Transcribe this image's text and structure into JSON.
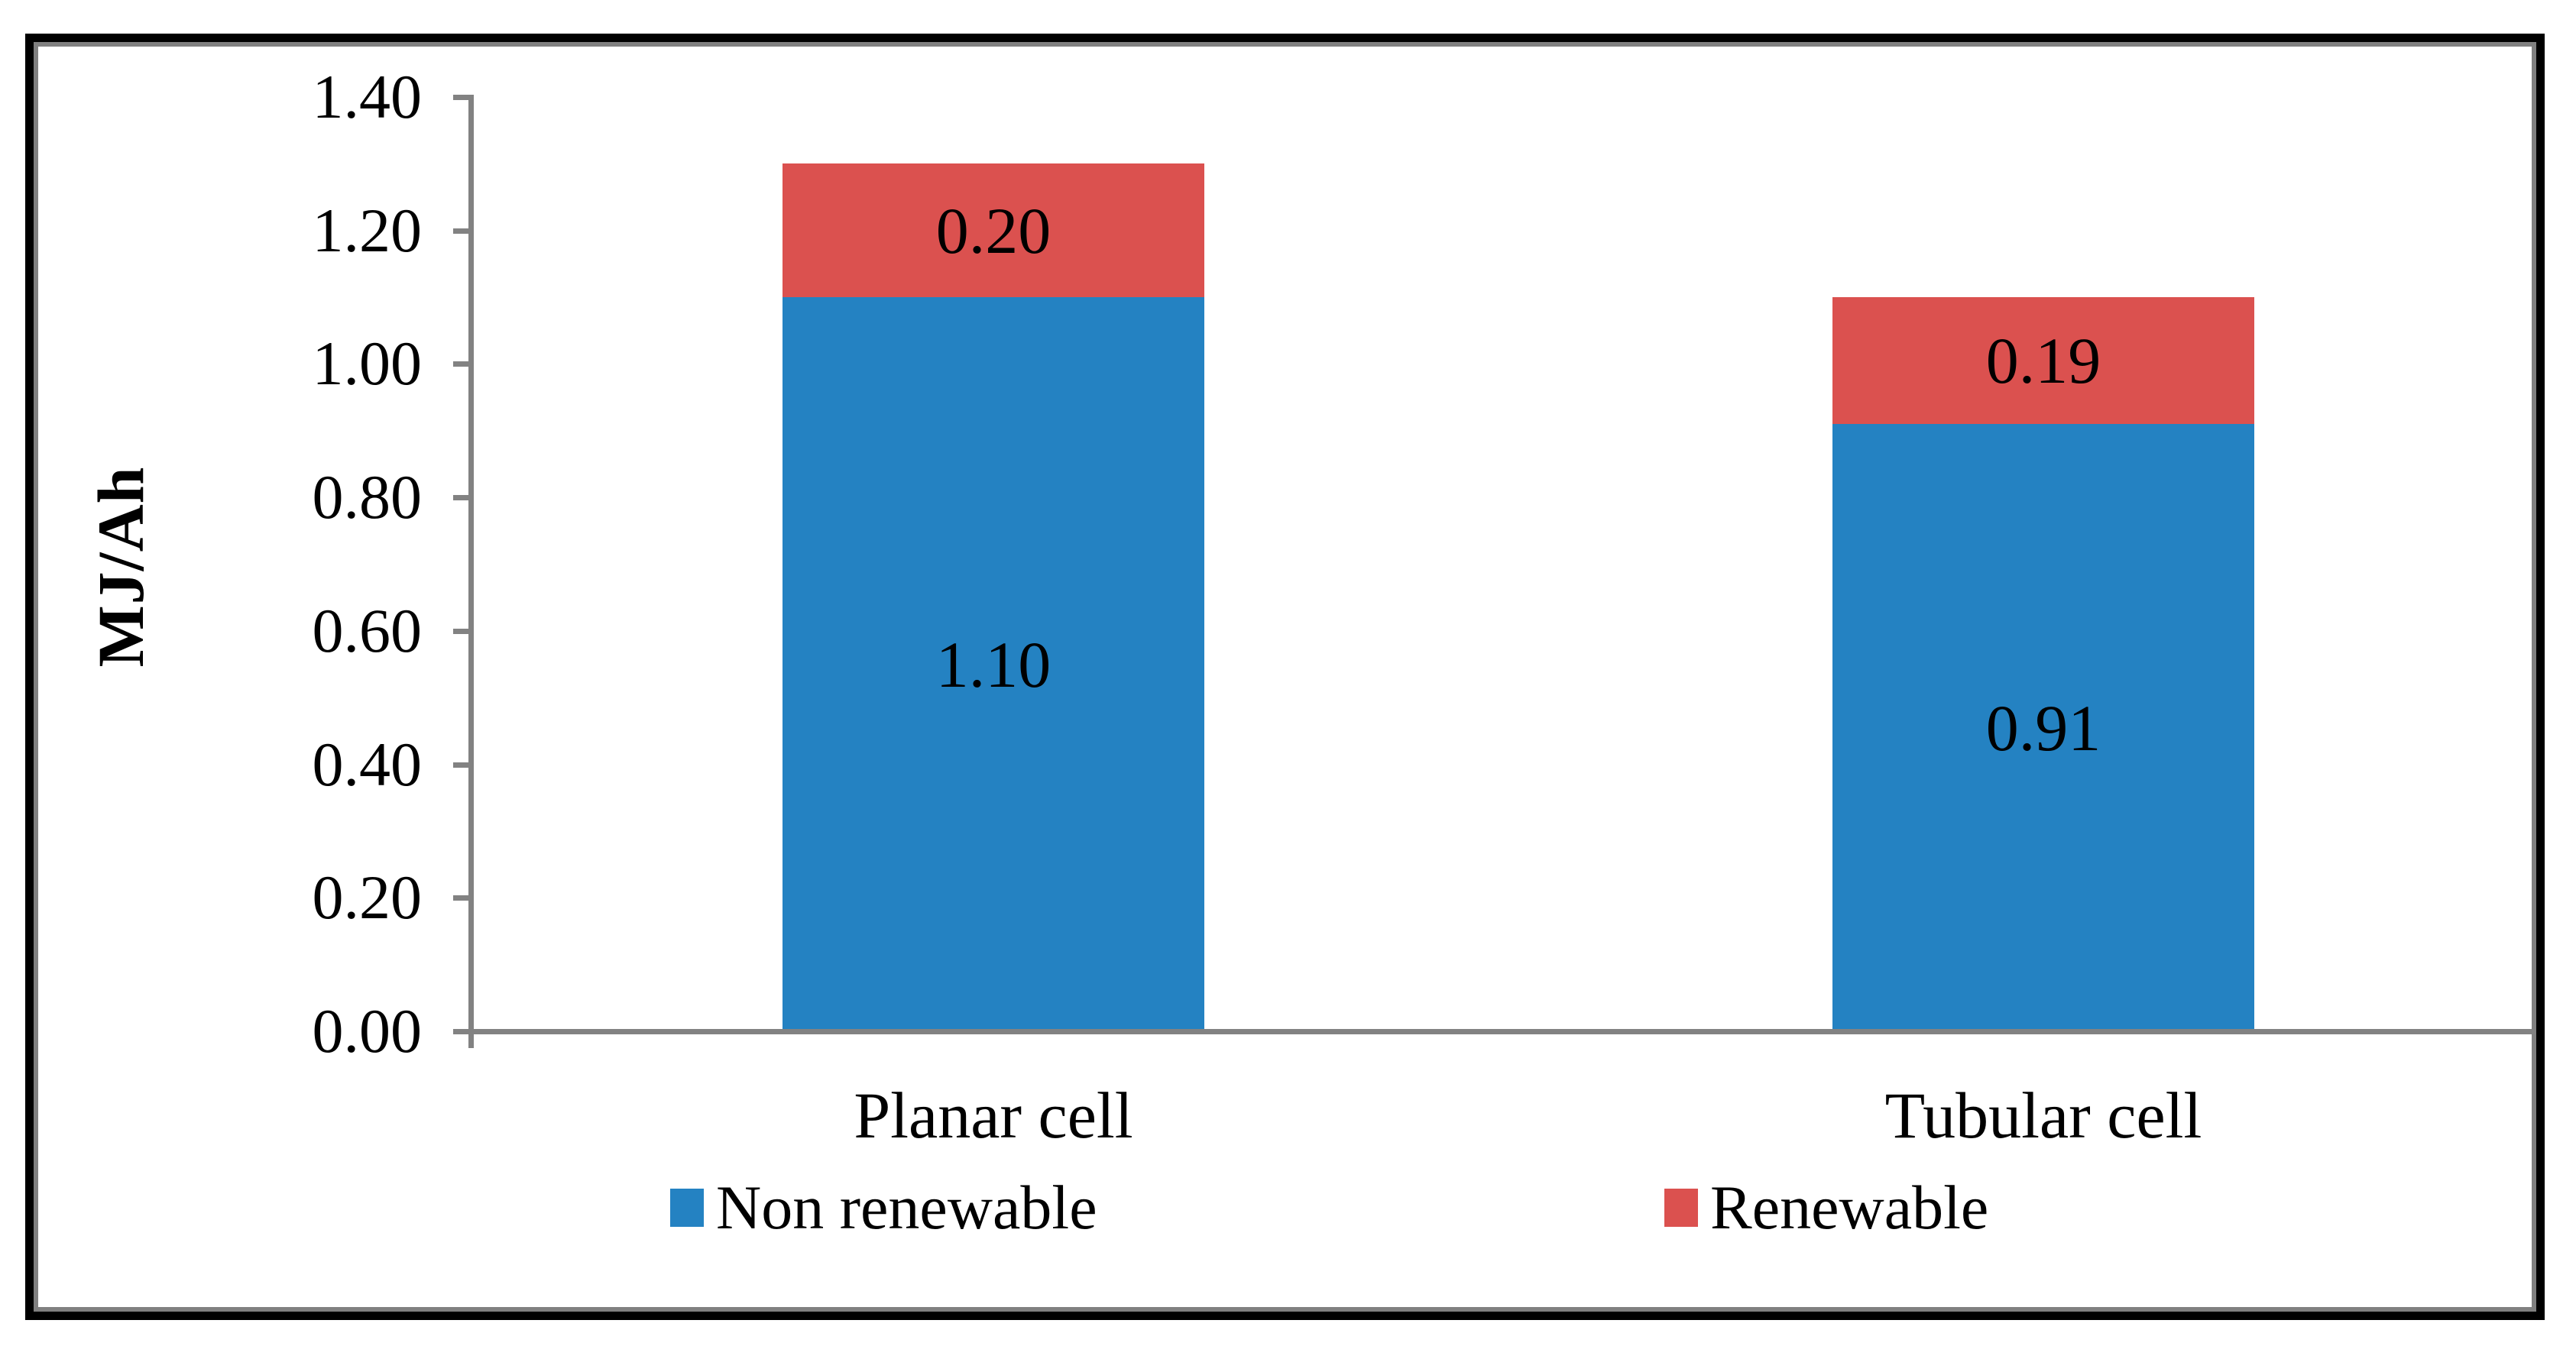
{
  "chart_data": {
    "type": "bar",
    "stacked": true,
    "title": "",
    "categories": [
      "Planar cell",
      "Tubular cell"
    ],
    "series": [
      {
        "name": "Non renewable",
        "color": "#2482C2",
        "values": [
          1.1,
          0.91
        ],
        "data_labels": [
          "1.10",
          "0.91"
        ]
      },
      {
        "name": "Renewable",
        "color": "#DB514F",
        "values": [
          0.2,
          0.19
        ],
        "data_labels": [
          "0.20",
          "0.19"
        ]
      }
    ],
    "xlabel": "",
    "ylabel": "MJ/Ah",
    "ylim": [
      0.0,
      1.4
    ],
    "ytick_interval": 0.2,
    "ytick_labels": [
      "0.00",
      "0.20",
      "0.40",
      "0.60",
      "0.80",
      "1.00",
      "1.20",
      "1.40"
    ],
    "grid": false,
    "legend": {
      "position": "bottom",
      "entries": [
        "Non renewable",
        "Renewable"
      ]
    },
    "axis_color": "#828282",
    "text_color": "#000000",
    "frame": {
      "outer_border_color": "#000000",
      "inner_border_color": "#808080"
    }
  }
}
